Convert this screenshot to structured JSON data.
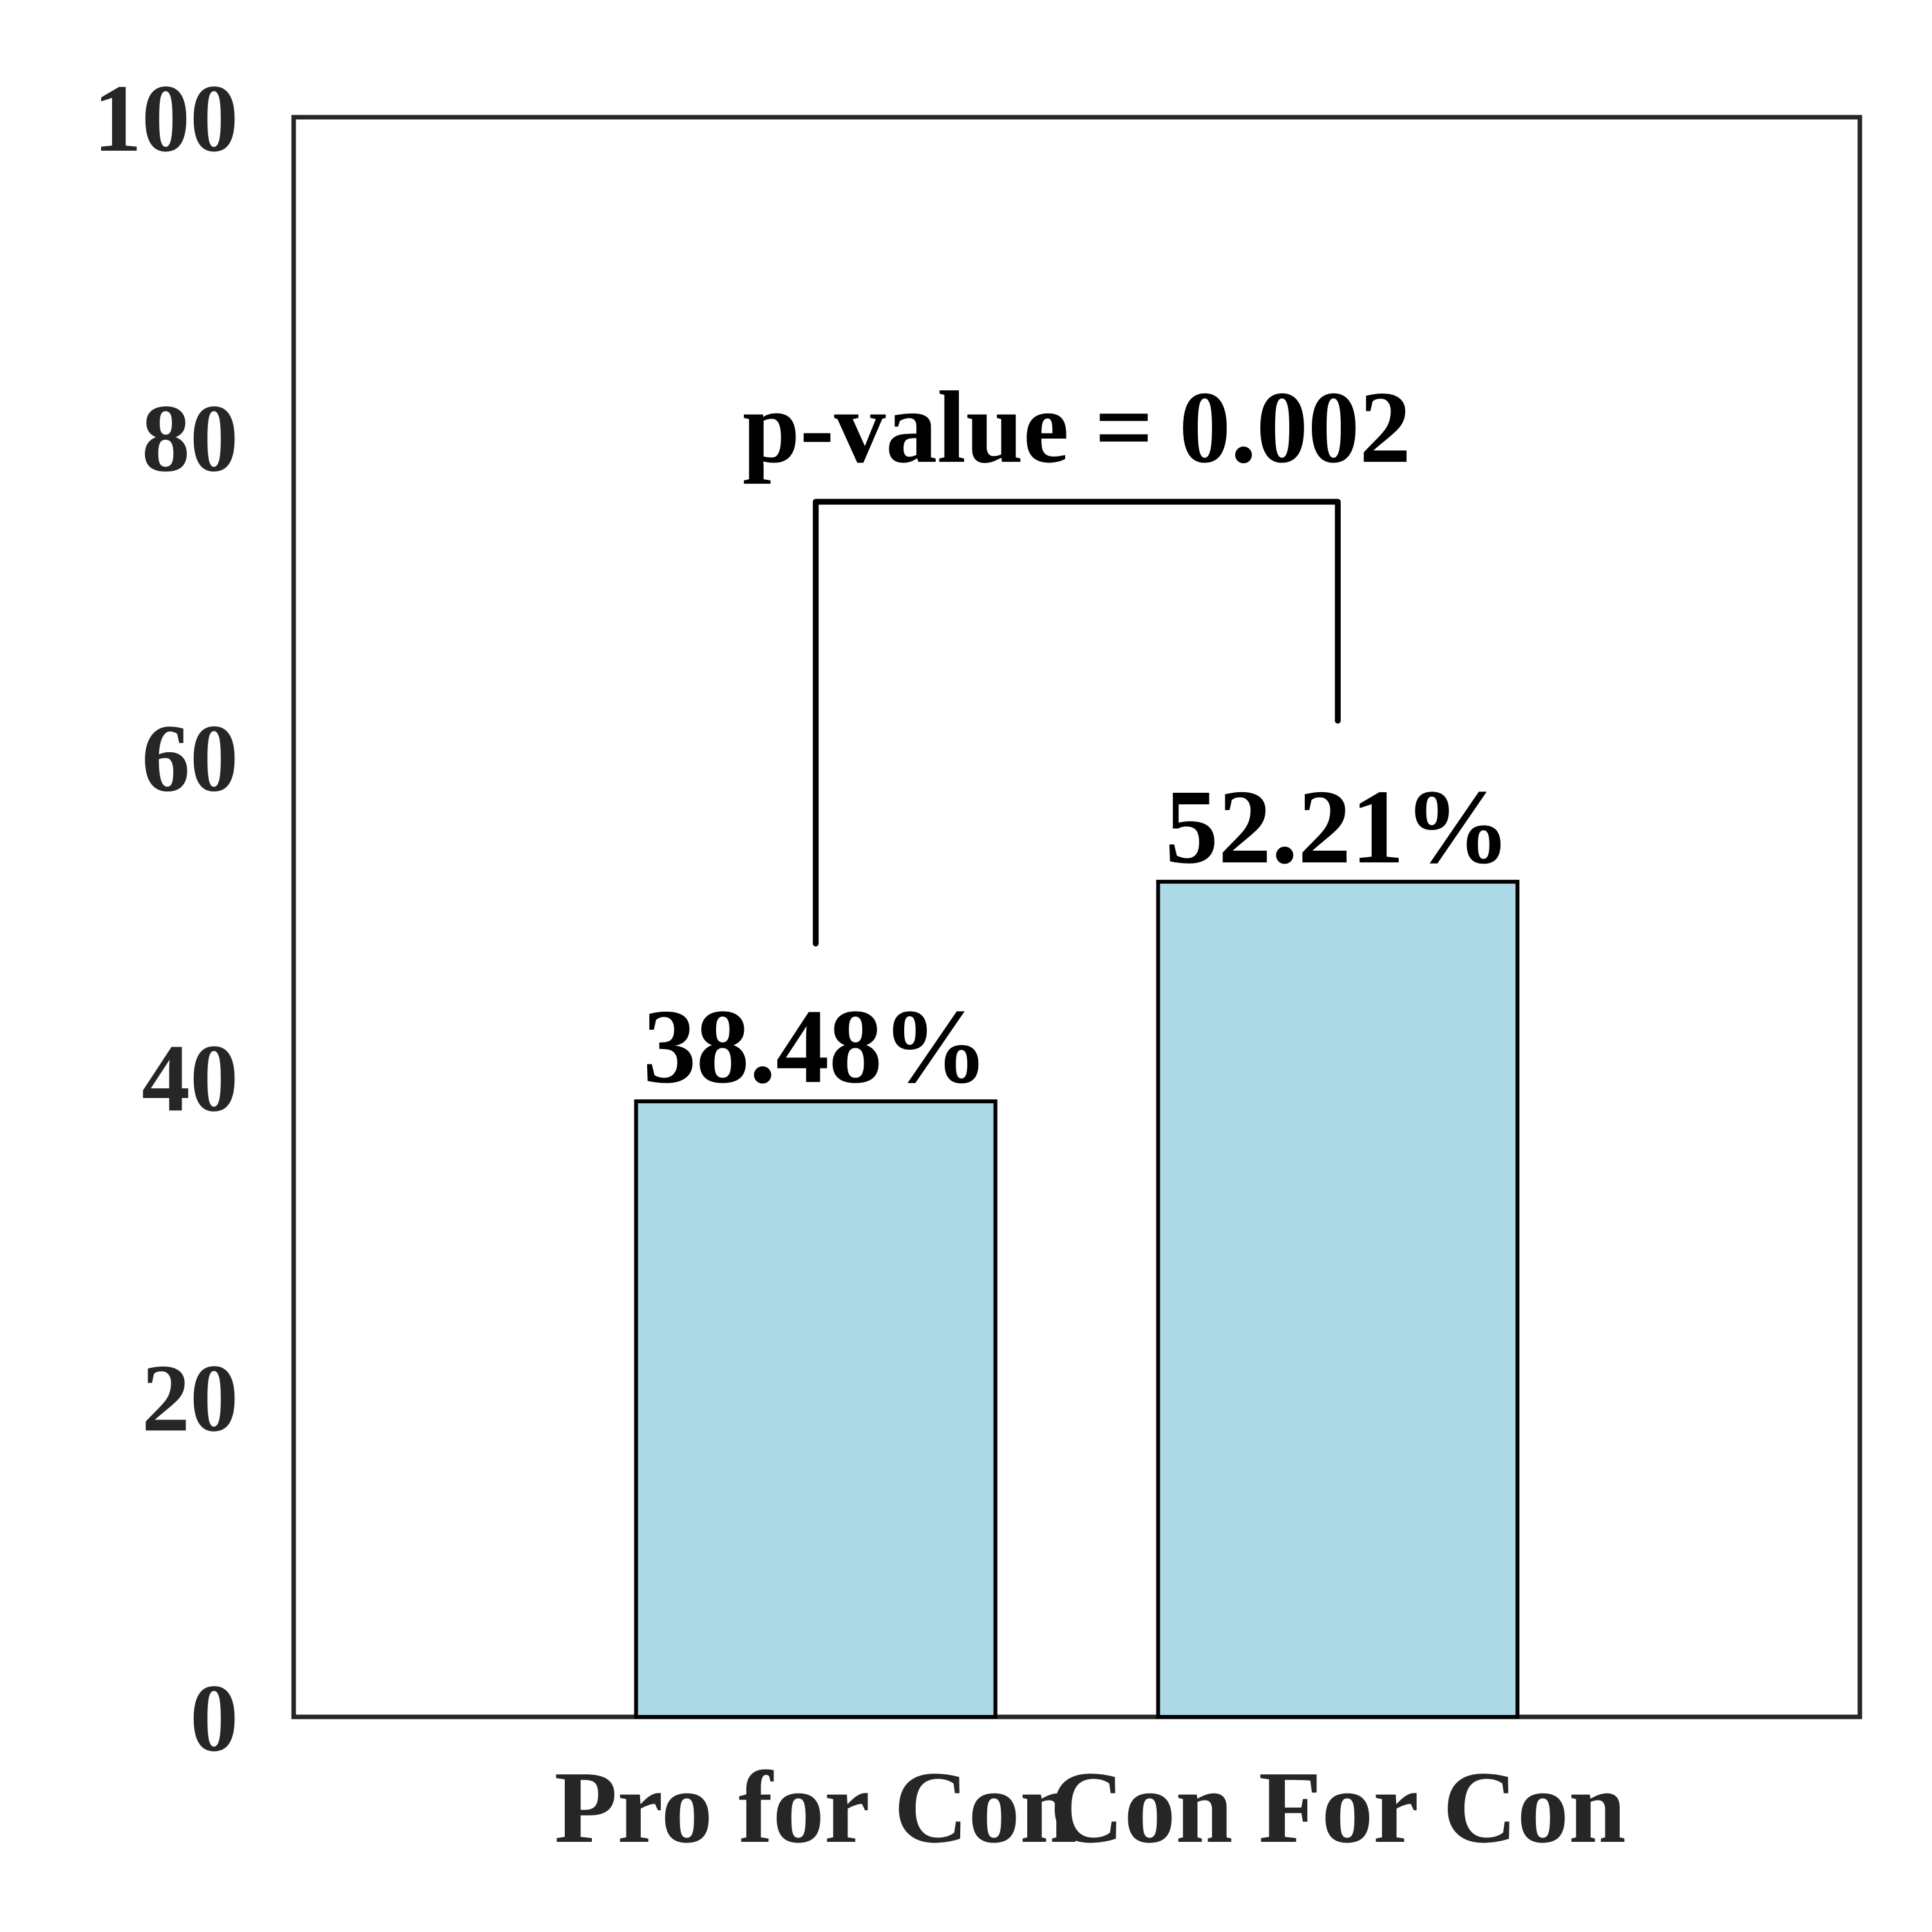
{
  "chart_data": {
    "type": "bar",
    "categories": [
      "Pro for Con",
      "Con For Con"
    ],
    "values": [
      38.48,
      52.21
    ],
    "value_labels": [
      "38.48%",
      "52.21%"
    ],
    "title": "",
    "xlabel": "",
    "ylabel": "",
    "ylim": [
      0,
      100
    ],
    "yticks": [
      "0",
      "20",
      "40",
      "60",
      "80",
      "100"
    ],
    "grid": false,
    "annotation": {
      "text": "p-value = 0.002",
      "between": [
        0,
        1
      ]
    },
    "colors": {
      "bar_fill": "#add8e6",
      "bar_edge": "#000000",
      "axes": "#262626",
      "text": "#262626"
    }
  }
}
